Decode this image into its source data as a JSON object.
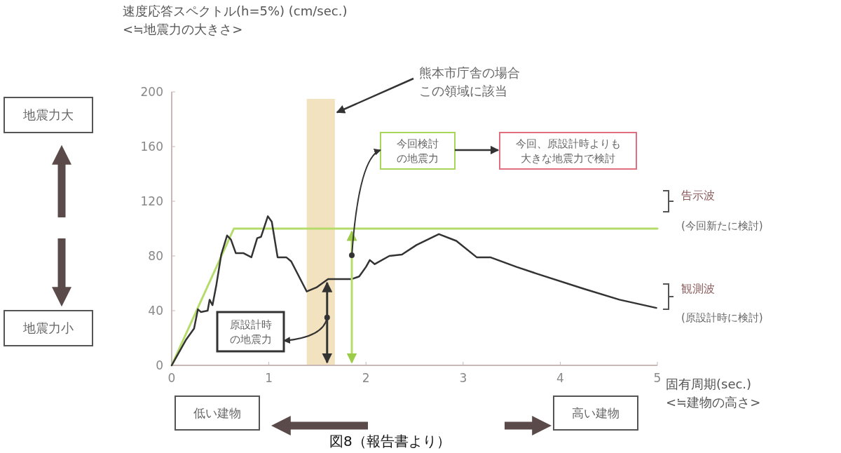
{
  "chart_data": {
    "type": "line",
    "ylabel": "速度応答スペクトル(h=5%) (cm/sec.)\n<≒地震力の大きさ>",
    "xlabel": "固有周期(sec.)\n<≒建物の高さ>",
    "xlim": [
      0,
      5
    ],
    "xticks": [
      0,
      1,
      2,
      3,
      4,
      5
    ],
    "ylim": [
      0,
      200
    ],
    "yticks": [
      0,
      40,
      80,
      120,
      160,
      200
    ],
    "grid": false,
    "marker": "none",
    "line_style": "solid",
    "bands": [
      {
        "axis": "x",
        "from": 1.39,
        "to": 1.68,
        "color": "#f2e2bf"
      }
    ],
    "series": [
      {
        "name": "告示波",
        "color": "#b5dc6a",
        "x": [
          0,
          0.64,
          5
        ],
        "values": [
          0,
          100,
          100
        ]
      },
      {
        "name": "観測波",
        "color": "#333333",
        "x": [
          0,
          0.15,
          0.23,
          0.27,
          0.3,
          0.37,
          0.39,
          0.42,
          0.46,
          0.51,
          0.57,
          0.61,
          0.66,
          0.74,
          0.82,
          0.88,
          0.92,
          0.99,
          1.03,
          1.09,
          1.18,
          1.23,
          1.39,
          1.49,
          1.61,
          1.68,
          1.85,
          1.93,
          2.0,
          2.04,
          2.09,
          2.24,
          2.37,
          2.52,
          2.75,
          2.93,
          3.14,
          3.28,
          3.55,
          3.76,
          4.24,
          4.61,
          4.99
        ],
        "values": [
          0,
          19,
          27,
          41,
          39,
          40,
          48,
          44,
          59,
          81,
          95,
          92,
          82,
          82,
          79,
          93,
          94,
          109,
          105,
          79,
          79,
          76,
          54,
          57,
          63,
          63,
          63,
          65,
          72,
          77,
          74,
          80,
          81,
          88,
          96,
          91,
          79,
          79,
          72,
          67,
          56,
          48,
          42
        ]
      }
    ],
    "annotations": [
      {
        "text": "熊本市庁舎の場合この領域に該当",
        "x": 1.68,
        "y": 185
      },
      "今回検討の地震力",
      "今回、原設計時よりも大きな地震力で検討",
      {
        "text": "原設計時の地震力",
        "x": 1.6,
        "y": 35
      },
      "地震力大",
      "地震力小",
      "低い建物",
      "高い建物",
      "図8（報告書より）",
      "(今回新たに検討)",
      "(原設計時に検討)"
    ]
  }
}
